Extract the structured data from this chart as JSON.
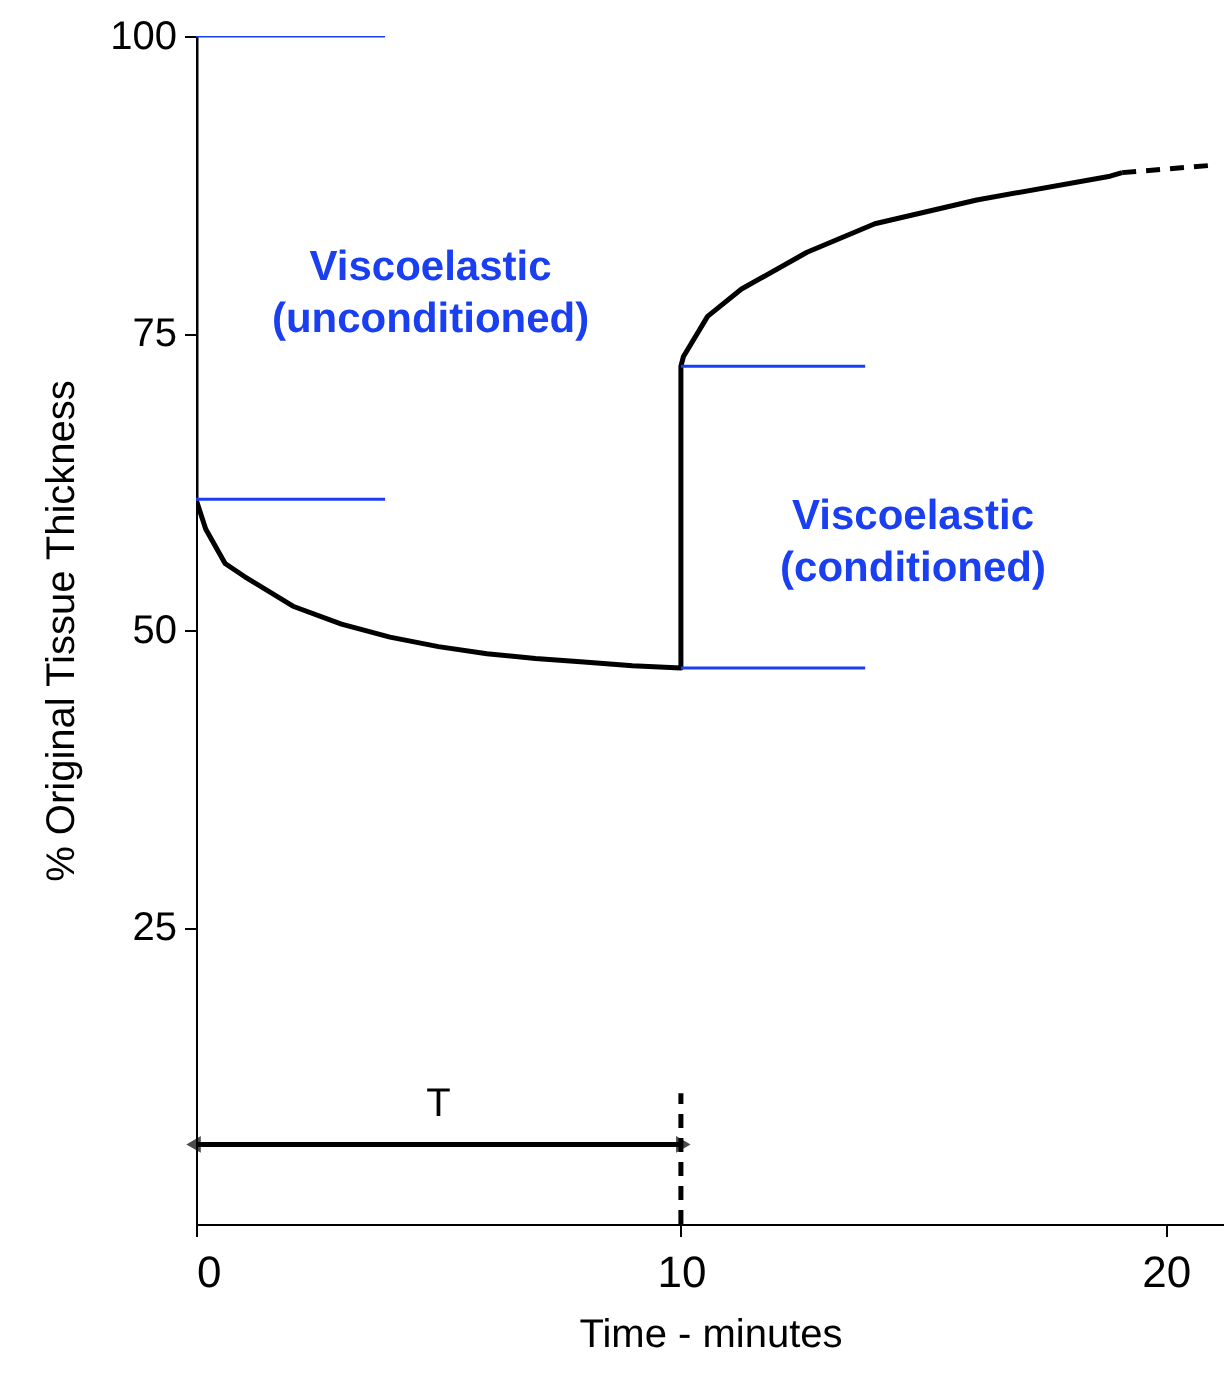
{
  "chart_data": {
    "type": "line",
    "xlabel": "Time - minutes",
    "ylabel": "% Original Tissue Thickness",
    "xlim": [
      0,
      21.2
    ],
    "ylim": [
      0,
      100
    ],
    "xticks": [
      0,
      10,
      20
    ],
    "yticks": [
      25,
      50,
      75,
      100
    ],
    "marker": "none",
    "line_style": "solid",
    "series": [
      {
        "color": "#000000",
        "x": [
          0,
          0,
          0.2,
          0.6,
          1,
          2,
          3,
          4,
          5,
          6,
          7,
          8,
          9,
          10,
          10,
          10.05,
          10.55,
          11.25,
          12.6,
          14,
          16.1,
          18.85,
          19.1
        ],
        "values": [
          100,
          61,
          58.5,
          55.6,
          54.5,
          52,
          50.5,
          49.4,
          48.6,
          48,
          47.6,
          47.3,
          47,
          46.8,
          72.2,
          73,
          76.4,
          78.7,
          81.8,
          84.2,
          86.2,
          88.2,
          88.5
        ]
      },
      {
        "color": "#000000",
        "line_style": "dashed",
        "x": [
          19.1,
          20.9
        ],
        "values": [
          88.5,
          89.1
        ]
      },
      {
        "color": "#1a3ff0",
        "x": [
          0,
          3.9
        ],
        "values": [
          100,
          100
        ]
      },
      {
        "color": "#1a3ff0",
        "x": [
          0,
          3.9
        ],
        "values": [
          61,
          61
        ]
      },
      {
        "color": "#1a3ff0",
        "x": [
          10,
          13.8
        ],
        "values": [
          72.2,
          72.2
        ]
      },
      {
        "color": "#1a3ff0",
        "x": [
          10,
          13.8
        ],
        "values": [
          46.8,
          46.8
        ]
      },
      {
        "color": "#000000",
        "marker": "triangle",
        "x": [
          0,
          10
        ],
        "values": [
          6.7,
          6.7
        ]
      },
      {
        "color": "#000000",
        "line_style": "dashed",
        "x": [
          10,
          10
        ],
        "values": [
          0,
          11
        ]
      }
    ],
    "annotations": [
      "Viscoelastic\n(unconditioned)",
      "Viscoelastic\n(conditioned)",
      "T"
    ]
  }
}
